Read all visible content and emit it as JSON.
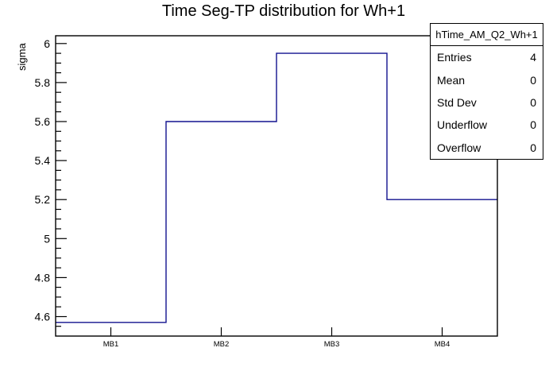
{
  "window": {
    "background": "#ffffff"
  },
  "chart_data": {
    "type": "step-histogram",
    "title": "Time Seg-TP distribution for Wh+1",
    "xlabel": "",
    "ylabel": "sigma",
    "categories": [
      "MB1",
      "MB2",
      "MB3",
      "MB4"
    ],
    "values": [
      4.57,
      5.6,
      5.95,
      5.2
    ],
    "ylim": [
      4.5,
      6.04
    ],
    "y_major_ticks": [
      {
        "value": 4.6,
        "label": "4.6"
      },
      {
        "value": 4.8,
        "label": "4.8"
      },
      {
        "value": 5.0,
        "label": "5"
      },
      {
        "value": 5.2,
        "label": "5.2"
      },
      {
        "value": 5.4,
        "label": "5.4"
      },
      {
        "value": 5.6,
        "label": "5.6"
      },
      {
        "value": 5.8,
        "label": "5.8"
      },
      {
        "value": 6.0,
        "label": "6"
      }
    ],
    "y_minor_tick_step": 0.05,
    "grid": false,
    "legend_position": "none",
    "line_color": "#12128f",
    "frame_color": "#000000",
    "text_color": "#000000"
  },
  "stats_box": {
    "title": "hTime_AM_Q2_Wh+1",
    "rows": [
      {
        "label": "Entries",
        "value": "4"
      },
      {
        "label": "Mean",
        "value": "0"
      },
      {
        "label": "Std Dev",
        "value": "0"
      },
      {
        "label": "Underflow",
        "value": "0"
      },
      {
        "label": "Overflow",
        "value": "0"
      }
    ]
  }
}
